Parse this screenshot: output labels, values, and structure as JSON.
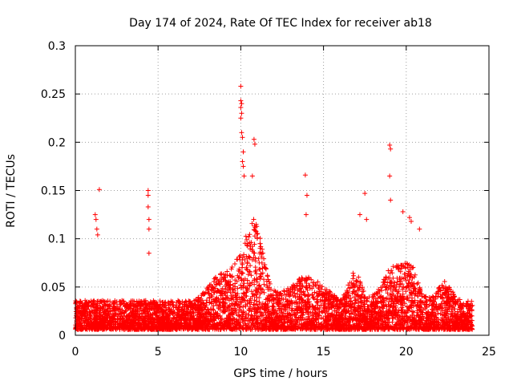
{
  "chart_data": {
    "type": "scatter",
    "title": "Day 174 of 2024, Rate Of TEC Index for receiver ab18",
    "xlabel": "GPS time / hours",
    "ylabel": "ROTI / TECUs",
    "xlim": [
      0,
      25
    ],
    "ylim": [
      0,
      0.3
    ],
    "xticks": [
      "0",
      "5",
      "10",
      "15",
      "20",
      "25"
    ],
    "yticks": [
      "0",
      "0.05",
      "0.1",
      "0.15",
      "0.2",
      "0.25",
      "0.3"
    ],
    "grid": true,
    "marker": "+",
    "color": "#ff0000",
    "series": [
      {
        "name": "ROTI",
        "points": [
          [
            1.2,
            0.125
          ],
          [
            1.25,
            0.12
          ],
          [
            1.3,
            0.11
          ],
          [
            1.35,
            0.104
          ],
          [
            1.45,
            0.151
          ],
          [
            4.4,
            0.15
          ],
          [
            4.4,
            0.145
          ],
          [
            4.4,
            0.133
          ],
          [
            4.45,
            0.12
          ],
          [
            4.45,
            0.11
          ],
          [
            4.45,
            0.085
          ],
          [
            10.0,
            0.258
          ],
          [
            10.0,
            0.243
          ],
          [
            10.05,
            0.24
          ],
          [
            10.0,
            0.236
          ],
          [
            10.05,
            0.23
          ],
          [
            10.0,
            0.225
          ],
          [
            10.05,
            0.21
          ],
          [
            10.1,
            0.205
          ],
          [
            10.15,
            0.19
          ],
          [
            10.1,
            0.18
          ],
          [
            10.15,
            0.175
          ],
          [
            10.2,
            0.165
          ],
          [
            10.8,
            0.203
          ],
          [
            10.85,
            0.198
          ],
          [
            10.7,
            0.165
          ],
          [
            13.9,
            0.166
          ],
          [
            14.0,
            0.145
          ],
          [
            13.95,
            0.125
          ],
          [
            17.5,
            0.147
          ],
          [
            17.2,
            0.125
          ],
          [
            17.6,
            0.12
          ],
          [
            19.0,
            0.197
          ],
          [
            19.05,
            0.193
          ],
          [
            19.0,
            0.165
          ],
          [
            19.05,
            0.14
          ],
          [
            19.8,
            0.128
          ],
          [
            20.2,
            0.122
          ],
          [
            20.3,
            0.118
          ],
          [
            20.8,
            0.11
          ]
        ]
      }
    ]
  }
}
